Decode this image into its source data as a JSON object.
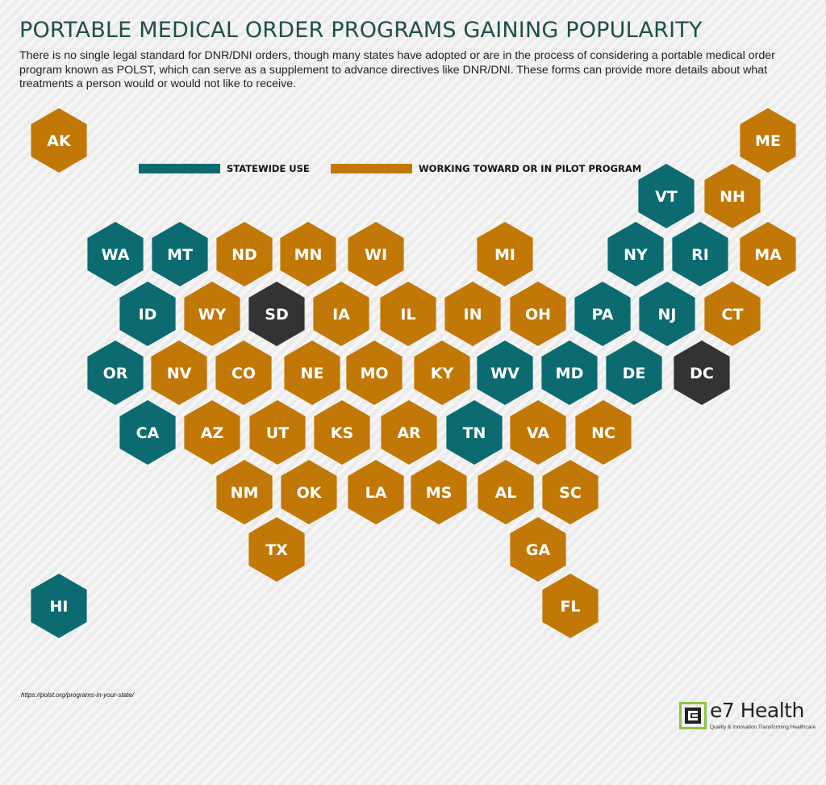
{
  "header": {
    "title": "PORTABLE MEDICAL ORDER PROGRAMS GAINING POPULARITY",
    "description": "There is no single legal standard for DNR/DNI orders, though many states have adopted or are in the process of considering a portable medical order program known as POLST, which can serve as a supplement to advance directives like DNR/DNI. These forms can provide more details about what treatments a person would or would not like to receive."
  },
  "colors": {
    "statewide": "#0b6b70",
    "working": "#c27807",
    "none": "#333333"
  },
  "legend": {
    "statewide": "STATEWIDE USE",
    "working": "WORKING TOWARD OR IN PILOT PROGRAM"
  },
  "states": [
    {
      "code": "AK",
      "status": "working"
    },
    {
      "code": "ME",
      "status": "working"
    },
    {
      "code": "VT",
      "status": "statewide"
    },
    {
      "code": "NH",
      "status": "working"
    },
    {
      "code": "WA",
      "status": "statewide"
    },
    {
      "code": "MT",
      "status": "statewide"
    },
    {
      "code": "ND",
      "status": "working"
    },
    {
      "code": "MN",
      "status": "working"
    },
    {
      "code": "WI",
      "status": "working"
    },
    {
      "code": "MI",
      "status": "working"
    },
    {
      "code": "NY",
      "status": "statewide"
    },
    {
      "code": "RI",
      "status": "statewide"
    },
    {
      "code": "MA",
      "status": "working"
    },
    {
      "code": "ID",
      "status": "statewide"
    },
    {
      "code": "WY",
      "status": "working"
    },
    {
      "code": "SD",
      "status": "none"
    },
    {
      "code": "IA",
      "status": "working"
    },
    {
      "code": "IL",
      "status": "working"
    },
    {
      "code": "IN",
      "status": "working"
    },
    {
      "code": "OH",
      "status": "working"
    },
    {
      "code": "PA",
      "status": "statewide"
    },
    {
      "code": "NJ",
      "status": "statewide"
    },
    {
      "code": "CT",
      "status": "working"
    },
    {
      "code": "OR",
      "status": "statewide"
    },
    {
      "code": "NV",
      "status": "working"
    },
    {
      "code": "CO",
      "status": "working"
    },
    {
      "code": "NE",
      "status": "working"
    },
    {
      "code": "MO",
      "status": "working"
    },
    {
      "code": "KY",
      "status": "working"
    },
    {
      "code": "WV",
      "status": "statewide"
    },
    {
      "code": "MD",
      "status": "statewide"
    },
    {
      "code": "DE",
      "status": "statewide"
    },
    {
      "code": "DC",
      "status": "none"
    },
    {
      "code": "CA",
      "status": "statewide"
    },
    {
      "code": "AZ",
      "status": "working"
    },
    {
      "code": "UT",
      "status": "working"
    },
    {
      "code": "KS",
      "status": "working"
    },
    {
      "code": "AR",
      "status": "working"
    },
    {
      "code": "TN",
      "status": "statewide"
    },
    {
      "code": "VA",
      "status": "working"
    },
    {
      "code": "NC",
      "status": "working"
    },
    {
      "code": "NM",
      "status": "working"
    },
    {
      "code": "OK",
      "status": "working"
    },
    {
      "code": "LA",
      "status": "working"
    },
    {
      "code": "MS",
      "status": "working"
    },
    {
      "code": "AL",
      "status": "working"
    },
    {
      "code": "SC",
      "status": "working"
    },
    {
      "code": "TX",
      "status": "working"
    },
    {
      "code": "GA",
      "status": "working"
    },
    {
      "code": "HI",
      "status": "statewide"
    },
    {
      "code": "FL",
      "status": "working"
    }
  ],
  "source": "https://polst.org/programs-in-your-state/",
  "logo": {
    "name": "e7 Health",
    "tagline": "Quality & Innovation Transforming Healthcare",
    "accent": "#8dc63f"
  }
}
